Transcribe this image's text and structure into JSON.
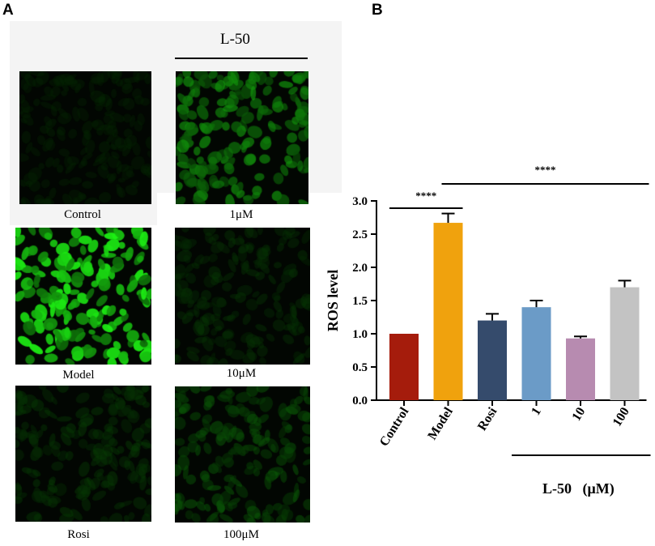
{
  "panel_a": {
    "letter": "A",
    "group_header": "L-50",
    "images": [
      {
        "label": "Control",
        "intensity": 0.05
      },
      {
        "label": "1μM",
        "intensity": 0.55
      },
      {
        "label": "Model",
        "intensity": 0.95
      },
      {
        "label": "10μM",
        "intensity": 0.12
      },
      {
        "label": "Rosi",
        "intensity": 0.15
      },
      {
        "label": "100μM",
        "intensity": 0.28
      }
    ]
  },
  "panel_b": {
    "letter": "B",
    "group_label": "L-50   (μM)"
  },
  "chart_data": {
    "type": "bar",
    "categories": [
      "Control",
      "Model",
      "Rosi",
      "1",
      "10",
      "100"
    ],
    "values": [
      1.0,
      2.67,
      1.2,
      1.4,
      0.93,
      1.7
    ],
    "errors": [
      0.0,
      0.14,
      0.1,
      0.1,
      0.03,
      0.1
    ],
    "colors": [
      "#a51c0c",
      "#f0a20d",
      "#354b6c",
      "#6b9bc7",
      "#b78bb0",
      "#c3c3c3"
    ],
    "ylabel": "ROS level",
    "ylim": [
      0,
      3.0
    ],
    "yticks": [
      "0.0",
      "0.5",
      "1.0",
      "1.5",
      "2.0",
      "2.5",
      "3.0"
    ],
    "significance": [
      {
        "label": "****",
        "from": "Control",
        "to": "Model"
      },
      {
        "label": "****",
        "from": "Model",
        "to": "100"
      }
    ]
  }
}
